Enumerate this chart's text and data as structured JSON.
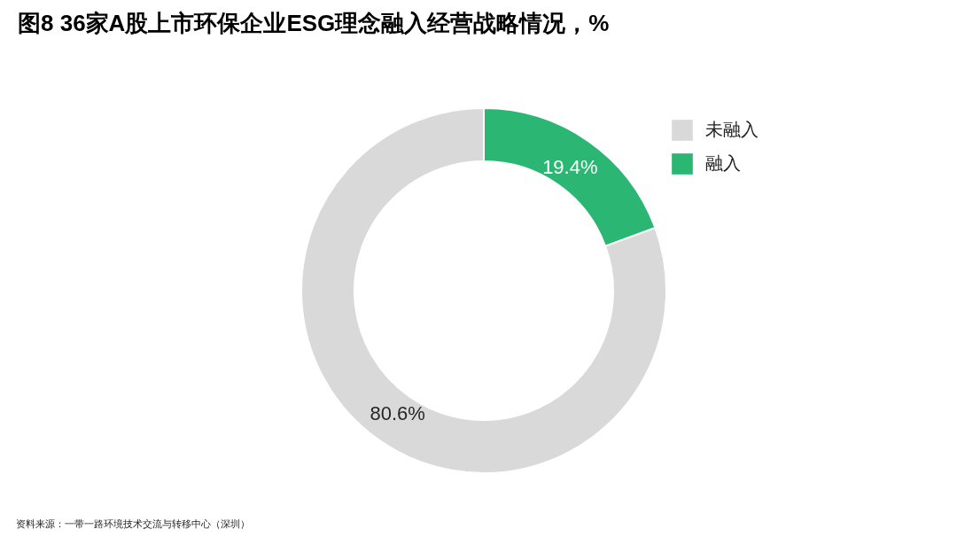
{
  "chart_data": {
    "type": "donut",
    "title": "图8 36家A股上市环保企业ESG理念融入经营战略情况，%",
    "categories": [
      "未融入",
      "融入"
    ],
    "values": [
      80.6,
      19.4
    ],
    "colors": [
      "#d9d9d9",
      "#2bb673"
    ],
    "value_labels": [
      "80.6%",
      "19.4%"
    ],
    "legend": "top right",
    "annotations": [
      "资料来源：一带一路环境技术交流与转移中心（深圳）"
    ]
  }
}
